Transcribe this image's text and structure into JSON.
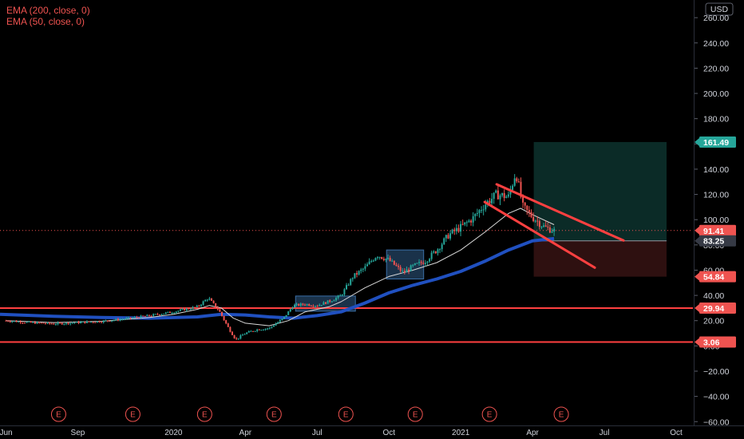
{
  "legend": {
    "ema200": "EMA (200, close, 0)",
    "ema50": "EMA (50, close, 0)"
  },
  "currency": "USD",
  "colors": {
    "background": "#000000",
    "up": "#26a69a",
    "down": "#ef5350",
    "ema200": "#2050c0",
    "ema50": "#d8d8d8",
    "level": "#ff4040",
    "target_zone": "#0b2b27",
    "stop_zone": "#2e1010",
    "consolidation": "#3a6ea5"
  },
  "chart_data": {
    "type": "candlestick",
    "x_unit": "month",
    "x_ticks": [
      {
        "label": "Jun",
        "x": 0
      },
      {
        "label": "Sep",
        "x": 3
      },
      {
        "label": "2020",
        "x": 7
      },
      {
        "label": "Apr",
        "x": 10
      },
      {
        "label": "Jul",
        "x": 13
      },
      {
        "label": "Oct",
        "x": 16
      },
      {
        "label": "2021",
        "x": 19
      },
      {
        "label": "Apr",
        "x": 22
      },
      {
        "label": "Jul",
        "x": 25
      },
      {
        "label": "Oct",
        "x": 28
      }
    ],
    "y_ticks": [
      -60,
      -40,
      -20,
      0,
      20,
      40,
      60,
      80,
      100,
      120,
      140,
      160,
      180,
      200,
      220,
      240,
      260
    ],
    "ylim": [
      -63,
      274
    ],
    "xlim": [
      -0.25,
      28.7
    ],
    "price_path": [
      [
        0,
        20
      ],
      [
        1,
        18.5
      ],
      [
        2,
        17.5
      ],
      [
        3,
        18.5
      ],
      [
        4,
        19.5
      ],
      [
        5,
        21.5
      ],
      [
        6,
        24
      ],
      [
        7,
        27
      ],
      [
        8,
        31
      ],
      [
        8.45,
        38
      ],
      [
        8.9,
        28
      ],
      [
        9.3,
        14
      ],
      [
        9.6,
        5
      ],
      [
        10,
        10
      ],
      [
        10.5,
        13
      ],
      [
        11,
        14
      ],
      [
        11.6,
        22
      ],
      [
        12,
        32
      ],
      [
        12.5,
        33
      ],
      [
        13,
        32
      ],
      [
        13.6,
        36
      ],
      [
        14,
        40
      ],
      [
        14.5,
        55
      ],
      [
        15,
        62
      ],
      [
        15.5,
        72
      ],
      [
        16,
        68
      ],
      [
        16.6,
        58
      ],
      [
        17,
        63
      ],
      [
        17.5,
        67
      ],
      [
        18,
        76
      ],
      [
        18.5,
        88
      ],
      [
        19,
        94
      ],
      [
        19.5,
        101
      ],
      [
        20,
        112
      ],
      [
        20.5,
        120
      ],
      [
        21,
        118
      ],
      [
        21.3,
        138
      ],
      [
        21.6,
        110
      ],
      [
        22,
        102
      ],
      [
        22.5,
        94
      ],
      [
        22.9,
        91.41
      ]
    ],
    "ema50": [
      [
        0,
        20
      ],
      [
        2,
        18.5
      ],
      [
        4,
        19.5
      ],
      [
        6,
        22.5
      ],
      [
        7,
        25
      ],
      [
        8,
        29
      ],
      [
        8.5,
        32
      ],
      [
        9,
        30
      ],
      [
        9.5,
        22
      ],
      [
        10,
        18
      ],
      [
        11,
        16
      ],
      [
        11.8,
        20
      ],
      [
        12.5,
        27
      ],
      [
        13.5,
        31
      ],
      [
        14,
        35
      ],
      [
        15,
        46
      ],
      [
        16,
        55
      ],
      [
        17,
        60
      ],
      [
        18,
        66
      ],
      [
        19,
        76
      ],
      [
        20,
        90
      ],
      [
        21,
        105
      ],
      [
        21.5,
        109
      ],
      [
        22,
        104
      ],
      [
        22.9,
        96
      ]
    ],
    "ema200": [
      [
        -0.25,
        25
      ],
      [
        2,
        23.5
      ],
      [
        4,
        22.5
      ],
      [
        6,
        22
      ],
      [
        8,
        23
      ],
      [
        9,
        25
      ],
      [
        10,
        24.5
      ],
      [
        11,
        23
      ],
      [
        12,
        22
      ],
      [
        13,
        24
      ],
      [
        14,
        27
      ],
      [
        15,
        34
      ],
      [
        16,
        42
      ],
      [
        17,
        48
      ],
      [
        18,
        53
      ],
      [
        19,
        59
      ],
      [
        20,
        67
      ],
      [
        21,
        76
      ],
      [
        22,
        83.25
      ],
      [
        22.9,
        85
      ]
    ],
    "horizontal_levels": [
      {
        "price": 29.94,
        "label": "29.94"
      },
      {
        "price": 3.06,
        "label": "3.06"
      }
    ],
    "position": {
      "x_start": 22.05,
      "x_end": 27.6,
      "entry": 83.25,
      "target": 161.49,
      "stop": 54.84
    },
    "channel_lines": [
      {
        "x1": 20.5,
        "y1": 128,
        "x2": 25.8,
        "y2": 83.5
      },
      {
        "x1": 20.0,
        "y1": 114,
        "x2": 24.6,
        "y2": 62
      }
    ],
    "consolidation_boxes": [
      {
        "x1": 12.1,
        "x2": 14.6,
        "y_low": 27.5,
        "y_high": 39.5
      },
      {
        "x1": 15.9,
        "x2": 17.45,
        "y_low": 53,
        "y_high": 76
      }
    ],
    "current_price": 91.41,
    "price_badges": [
      {
        "value": "161.49",
        "price": 161.49,
        "color": "#26a69a"
      },
      {
        "value": "91.41",
        "price": 91.41,
        "color": "#ef5350"
      },
      {
        "value": "83.25",
        "price": 83.25,
        "color": "#363a45"
      },
      {
        "value": "54.84",
        "price": 54.84,
        "color": "#ef5350"
      },
      {
        "value": "29.94",
        "price": 29.94,
        "color": "#ef5350"
      },
      {
        "value": "3.06",
        "price": 3.06,
        "color": "#ef5350"
      }
    ],
    "earnings_markers": [
      {
        "label": "E",
        "x": 2.2
      },
      {
        "label": "E",
        "x": 5.3
      },
      {
        "label": "E",
        "x": 8.3
      },
      {
        "label": "E",
        "x": 11.2
      },
      {
        "label": "E",
        "x": 14.2
      },
      {
        "label": "E",
        "x": 17.1
      },
      {
        "label": "E",
        "x": 20.2
      },
      {
        "label": "E",
        "x": 23.2
      }
    ]
  }
}
